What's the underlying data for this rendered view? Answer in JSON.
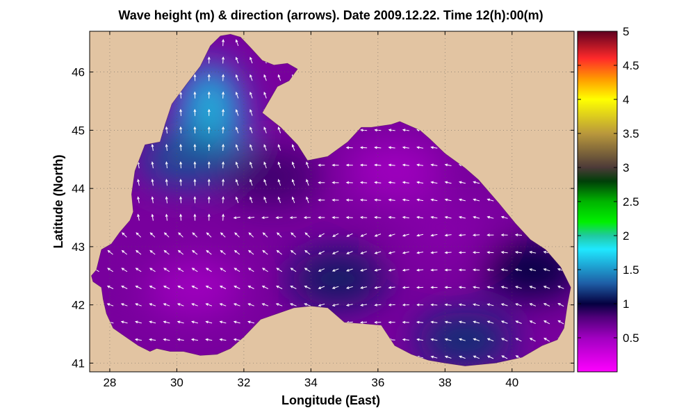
{
  "chart_data": {
    "type": "heatmap",
    "title": "Wave height (m) & direction (arrows). Date 2009.12.22. Time 12(h):00(m)",
    "xlabel": "Longitude (East)",
    "ylabel": "Latitude (North)",
    "xlim": [
      27.4,
      41.85
    ],
    "ylim": [
      40.85,
      46.7
    ],
    "xticks": [
      28,
      30,
      32,
      34,
      36,
      38,
      40
    ],
    "yticks": [
      41,
      42,
      43,
      44,
      45,
      46
    ],
    "grid": true,
    "land_color": "#e2c4a2",
    "colorbar": {
      "label_values": [
        0.5,
        1,
        1.5,
        2,
        2.5,
        3,
        3.5,
        4,
        4.5,
        5
      ],
      "range": [
        0,
        5
      ],
      "stops": [
        {
          "v": 0.0,
          "color": "#ff00ff"
        },
        {
          "v": 0.5,
          "color": "#a000c0"
        },
        {
          "v": 0.8,
          "color": "#50007a"
        },
        {
          "v": 1.0,
          "color": "#050040"
        },
        {
          "v": 1.3,
          "color": "#1e5ea6"
        },
        {
          "v": 1.8,
          "color": "#1fe8ff"
        },
        {
          "v": 2.0,
          "color": "#20c9a0"
        },
        {
          "v": 2.2,
          "color": "#00f000"
        },
        {
          "v": 2.5,
          "color": "#00b400"
        },
        {
          "v": 2.8,
          "color": "#003f08"
        },
        {
          "v": 3.0,
          "color": "#4c3a38"
        },
        {
          "v": 3.5,
          "color": "#b9983c"
        },
        {
          "v": 4.0,
          "color": "#ffff00"
        },
        {
          "v": 4.3,
          "color": "#ff9a00"
        },
        {
          "v": 4.6,
          "color": "#ff2a2a"
        },
        {
          "v": 5.0,
          "color": "#600020"
        }
      ]
    },
    "wave_regions": [
      {
        "lon": 31.0,
        "lat": 45.2,
        "height": 1.6
      },
      {
        "lon": 30.3,
        "lat": 44.5,
        "height": 1.25
      },
      {
        "lon": 32.8,
        "lat": 44.2,
        "height": 0.85
      },
      {
        "lon": 36.5,
        "lat": 44.3,
        "height": 0.5
      },
      {
        "lon": 38.0,
        "lat": 43.3,
        "height": 0.6
      },
      {
        "lon": 34.8,
        "lat": 42.45,
        "height": 1.1
      },
      {
        "lon": 38.6,
        "lat": 41.4,
        "height": 1.15
      },
      {
        "lon": 40.6,
        "lat": 42.6,
        "height": 1.0
      },
      {
        "lon": 30.5,
        "lat": 42.3,
        "height": 0.5
      },
      {
        "lon": 28.5,
        "lat": 42.8,
        "height": 0.65
      }
    ]
  }
}
